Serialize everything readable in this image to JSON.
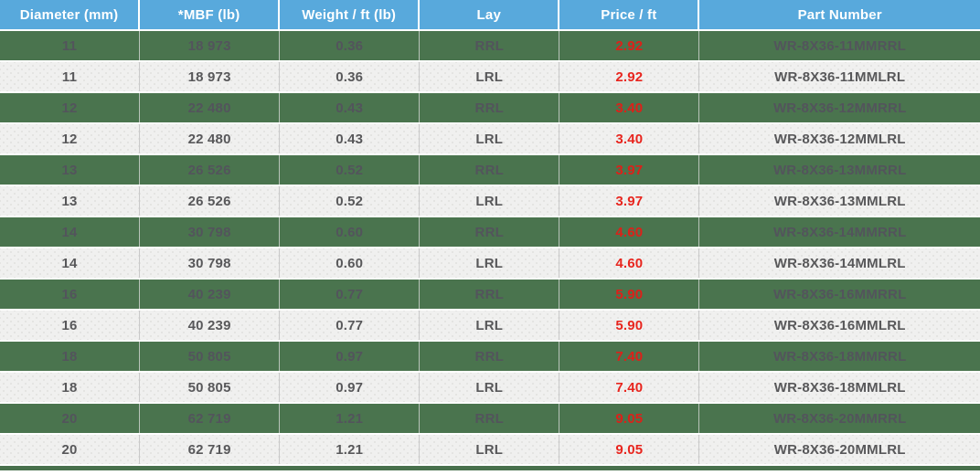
{
  "colors": {
    "header_bg": "#58a9dc",
    "header_text": "#ffffff",
    "green_row_bg": "#4a744e",
    "green_row_text": "#53545c",
    "light_row_bg": "#f0f0ef",
    "body_text": "#58585a",
    "price_red": "#e8251e",
    "divider_gray": "#c9c9c9",
    "bottom_bar_green": "#48704c"
  },
  "table": {
    "columns": [
      {
        "id": "diameter",
        "label": "Diameter (mm)"
      },
      {
        "id": "mbf",
        "label": "*MBF (lb)"
      },
      {
        "id": "weight",
        "label": "Weight / ft (lb)"
      },
      {
        "id": "lay",
        "label": "Lay"
      },
      {
        "id": "price",
        "label": "Price / ft"
      },
      {
        "id": "part",
        "label": "Part Number"
      }
    ],
    "rows": [
      {
        "variant": "green",
        "diameter": "11",
        "mbf": "18 973",
        "weight": "0.36",
        "lay": "RRL",
        "price": "2.92",
        "part": "WR-8X36-11MMRRL"
      },
      {
        "variant": "light",
        "diameter": "11",
        "mbf": "18 973",
        "weight": "0.36",
        "lay": "LRL",
        "price": "2.92",
        "part": "WR-8X36-11MMLRL"
      },
      {
        "variant": "green",
        "diameter": "12",
        "mbf": "22 480",
        "weight": "0.43",
        "lay": "RRL",
        "price": "3.40",
        "part": "WR-8X36-12MMRRL"
      },
      {
        "variant": "light",
        "diameter": "12",
        "mbf": "22 480",
        "weight": "0.43",
        "lay": "LRL",
        "price": "3.40",
        "part": "WR-8X36-12MMLRL"
      },
      {
        "variant": "green",
        "diameter": "13",
        "mbf": "26 526",
        "weight": "0.52",
        "lay": "RRL",
        "price": "3.97",
        "part": "WR-8X36-13MMRRL"
      },
      {
        "variant": "light",
        "diameter": "13",
        "mbf": "26 526",
        "weight": "0.52",
        "lay": "LRL",
        "price": "3.97",
        "part": "WR-8X36-13MMLRL"
      },
      {
        "variant": "green",
        "diameter": "14",
        "mbf": "30 798",
        "weight": "0.60",
        "lay": "RRL",
        "price": "4.60",
        "part": "WR-8X36-14MMRRL"
      },
      {
        "variant": "light",
        "diameter": "14",
        "mbf": "30 798",
        "weight": "0.60",
        "lay": "LRL",
        "price": "4.60",
        "part": "WR-8X36-14MMLRL"
      },
      {
        "variant": "green",
        "diameter": "16",
        "mbf": "40 239",
        "weight": "0.77",
        "lay": "RRL",
        "price": "5.90",
        "part": "WR-8X36-16MMRRL"
      },
      {
        "variant": "light",
        "diameter": "16",
        "mbf": "40 239",
        "weight": "0.77",
        "lay": "LRL",
        "price": "5.90",
        "part": "WR-8X36-16MMLRL"
      },
      {
        "variant": "green",
        "diameter": "18",
        "mbf": "50 805",
        "weight": "0.97",
        "lay": "RRL",
        "price": "7.40",
        "part": "WR-8X36-18MMRRL"
      },
      {
        "variant": "light",
        "diameter": "18",
        "mbf": "50 805",
        "weight": "0.97",
        "lay": "LRL",
        "price": "7.40",
        "part": "WR-8X36-18MMLRL"
      },
      {
        "variant": "green",
        "diameter": "20",
        "mbf": "62 719",
        "weight": "1.21",
        "lay": "RRL",
        "price": "9.05",
        "part": "WR-8X36-20MMRRL"
      },
      {
        "variant": "light",
        "diameter": "20",
        "mbf": "62 719",
        "weight": "1.21",
        "lay": "LRL",
        "price": "9.05",
        "part": "WR-8X36-20MMLRL"
      }
    ]
  }
}
